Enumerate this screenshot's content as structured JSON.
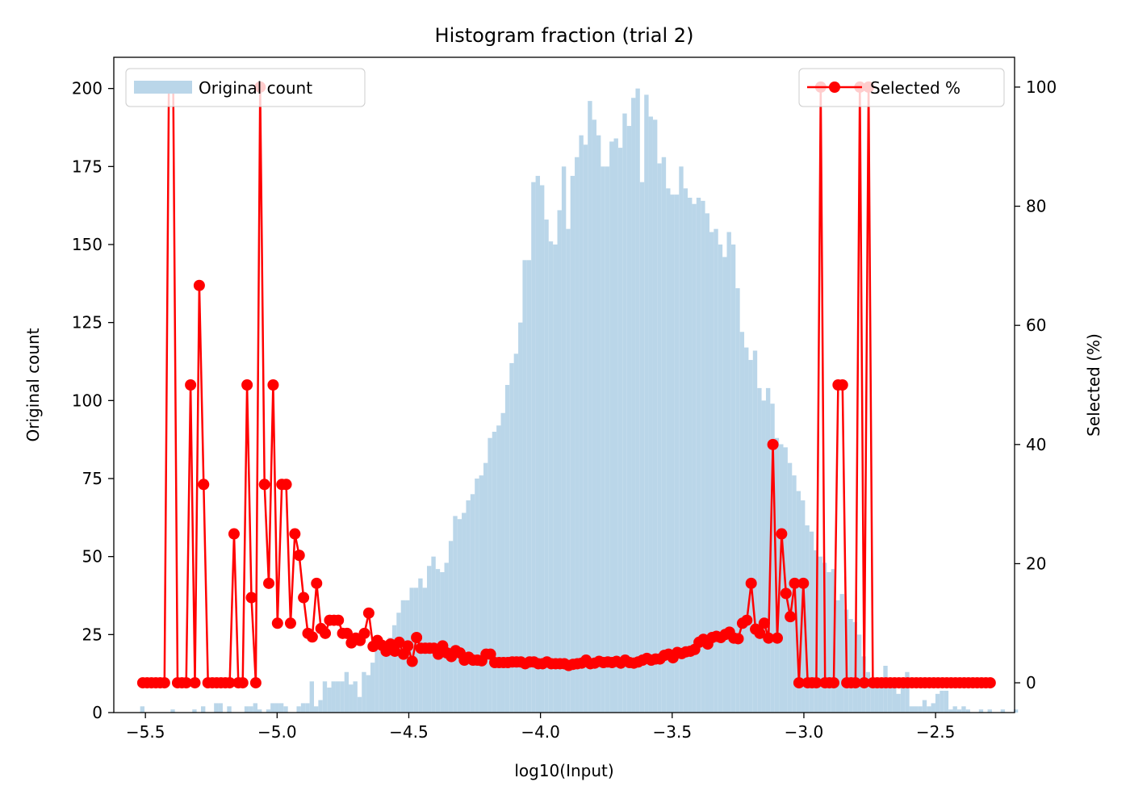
{
  "chart_data": {
    "type": "bar+line",
    "title": "Histogram fraction (trial 2)",
    "xlabel": "log10(Input)",
    "ylabel_left": "Original count",
    "ylabel_right": "Selected (%)",
    "xlim": [
      -5.62,
      -2.2
    ],
    "ylim_left": [
      0,
      210
    ],
    "ylim_right": [
      -5,
      105
    ],
    "xticks": [
      -5.5,
      -5.0,
      -4.5,
      -4.0,
      -3.5,
      -3.0,
      -2.5
    ],
    "xtick_labels": [
      "−5.5",
      "−5.0",
      "−4.5",
      "−4.0",
      "−3.5",
      "−3.0",
      "−2.5"
    ],
    "yticks_left": [
      0,
      25,
      50,
      75,
      100,
      125,
      150,
      175,
      200
    ],
    "yticks_right": [
      0,
      20,
      40,
      60,
      80,
      100
    ],
    "grid": false,
    "colors": {
      "bars": "#bad6e9",
      "line": "#ff0000"
    },
    "bars": {
      "name": "Original count",
      "bin_start": -5.52,
      "bin_width": 0.0165,
      "counts": [
        2,
        0,
        0,
        0,
        0,
        0,
        0,
        1,
        0,
        0,
        0,
        0,
        1,
        0,
        2,
        0,
        0,
        3,
        3,
        0,
        2,
        0,
        0,
        0,
        2,
        2,
        3,
        1,
        0,
        1,
        3,
        3,
        3,
        2,
        0,
        0,
        2,
        3,
        3,
        10,
        2,
        4,
        10,
        8,
        10,
        10,
        10,
        13,
        9,
        10,
        5,
        13,
        12,
        16,
        20,
        20,
        19,
        24,
        28,
        32,
        36,
        36,
        40,
        40,
        43,
        40,
        47,
        50,
        46,
        45,
        48,
        55,
        63,
        62,
        64,
        68,
        70,
        75,
        76,
        80,
        88,
        90,
        92,
        96,
        105,
        112,
        115,
        125,
        145,
        145,
        170,
        172,
        169,
        158,
        151,
        150,
        161,
        175,
        155,
        172,
        178,
        185,
        182,
        196,
        190,
        185,
        175,
        175,
        183,
        184,
        181,
        192,
        188,
        197,
        200,
        170,
        198,
        191,
        190,
        176,
        178,
        168,
        166,
        166,
        175,
        168,
        165,
        163,
        165,
        164,
        160,
        154,
        155,
        150,
        146,
        154,
        150,
        136,
        122,
        117,
        113,
        116,
        104,
        100,
        104,
        99,
        88,
        86,
        85,
        80,
        76,
        71,
        68,
        60,
        58,
        52,
        50,
        48,
        45,
        46,
        36,
        38,
        33,
        30,
        29,
        25,
        18,
        13,
        10,
        10,
        10,
        15,
        10,
        10,
        6,
        10,
        13,
        2,
        2,
        2,
        4,
        2,
        3,
        6,
        7,
        7,
        1,
        2,
        1,
        2,
        1,
        0,
        0,
        1,
        0,
        1,
        0,
        0,
        1,
        0,
        0,
        1,
        0,
        0,
        0,
        0,
        0,
        0,
        0,
        0,
        0,
        0
      ]
    },
    "line": {
      "name": "Selected %",
      "x_start": -5.51,
      "x_step": 0.0165,
      "values": [
        0,
        0,
        0,
        0,
        0,
        0,
        100,
        100,
        0,
        0,
        0,
        50,
        0,
        66.7,
        33.3,
        0,
        0,
        0,
        0,
        0,
        0,
        25,
        0,
        0,
        50,
        14.3,
        0,
        100,
        33.3,
        16.7,
        50,
        10,
        33.3,
        33.3,
        10,
        25,
        21.4,
        14.3,
        8.3,
        7.7,
        16.7,
        9.1,
        8.3,
        10.5,
        10.5,
        10.5,
        8.3,
        8.3,
        6.7,
        7.5,
        7.1,
        8.3,
        11.7,
        6.1,
        7.1,
        6.3,
        5.3,
        6.5,
        5.3,
        6.8,
        4.8,
        6.2,
        3.6,
        7.6,
        5.8,
        5.8,
        5.8,
        5.8,
        4.8,
        6.2,
        5,
        4.4,
        5.4,
        5,
        3.8,
        4.3,
        3.8,
        3.8,
        3.7,
        4.8,
        4.8,
        3.4,
        3.4,
        3.4,
        3.4,
        3.5,
        3.5,
        3.5,
        3.2,
        3.5,
        3.5,
        3.2,
        3.2,
        3.5,
        3.2,
        3.2,
        3.2,
        3.2,
        2.9,
        3.1,
        3.2,
        3.3,
        3.8,
        3.2,
        3.3,
        3.6,
        3.4,
        3.5,
        3.4,
        3.6,
        3.3,
        3.8,
        3.4,
        3.3,
        3.5,
        3.8,
        4.1,
        3.8,
        4,
        4,
        4.6,
        4.8,
        4.2,
        5.1,
        4.9,
        5.2,
        5.3,
        5.6,
        6.8,
        7.3,
        6.5,
        7.6,
        7.8,
        7.6,
        8.1,
        8.5,
        7.5,
        7.4,
        10,
        10.5,
        16.7,
        9,
        8.3,
        10,
        7.5,
        40,
        7.5,
        25,
        15,
        11.1,
        16.7,
        0,
        16.7,
        0,
        0,
        0,
        100,
        0,
        0,
        0,
        50,
        50,
        0,
        0,
        0,
        100,
        0,
        100,
        0,
        0,
        0,
        0,
        0,
        0,
        0,
        0,
        0,
        0,
        0,
        0,
        0,
        0,
        0,
        0,
        0,
        0,
        0,
        0,
        0,
        0,
        0,
        0,
        0,
        0,
        0,
        0
      ]
    },
    "legend_left": {
      "label": "Original count",
      "placement": "upper-left"
    },
    "legend_right": {
      "label": "Selected %",
      "placement": "upper-right"
    }
  }
}
